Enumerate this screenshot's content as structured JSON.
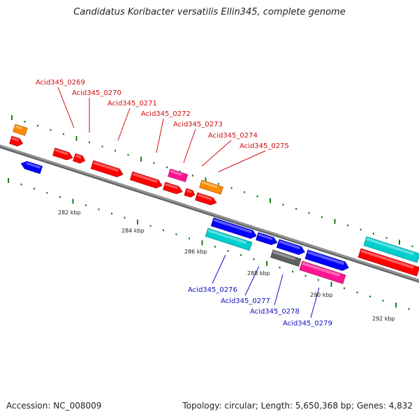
{
  "title": "Candidatus Koribacter versatilis Ellin345, complete genome",
  "footer": {
    "accession": "Accession: NC_008009",
    "summary": "Topology: circular; Length: 5,650,368 bp; Genes: 4,832"
  },
  "colors": {
    "label_top": "#d01010",
    "label_bottom": "#1010c0",
    "axis": "#808080",
    "tick": "#1a7a1a"
  },
  "ticks": [
    "282 kbp",
    "284 kbp",
    "286 kbp",
    "288 kbp",
    "290 kbp",
    "292 kbp"
  ],
  "labels_top": [
    "Acid345_0269",
    "Acid345_0270",
    "Acid345_0271",
    "Acid345_0272",
    "Acid345_0273",
    "Acid345_0274",
    "Acid345_0275"
  ],
  "labels_bottom": [
    "Acid345_0276",
    "Acid345_0277",
    "Acid345_0278",
    "Acid345_0279"
  ]
}
